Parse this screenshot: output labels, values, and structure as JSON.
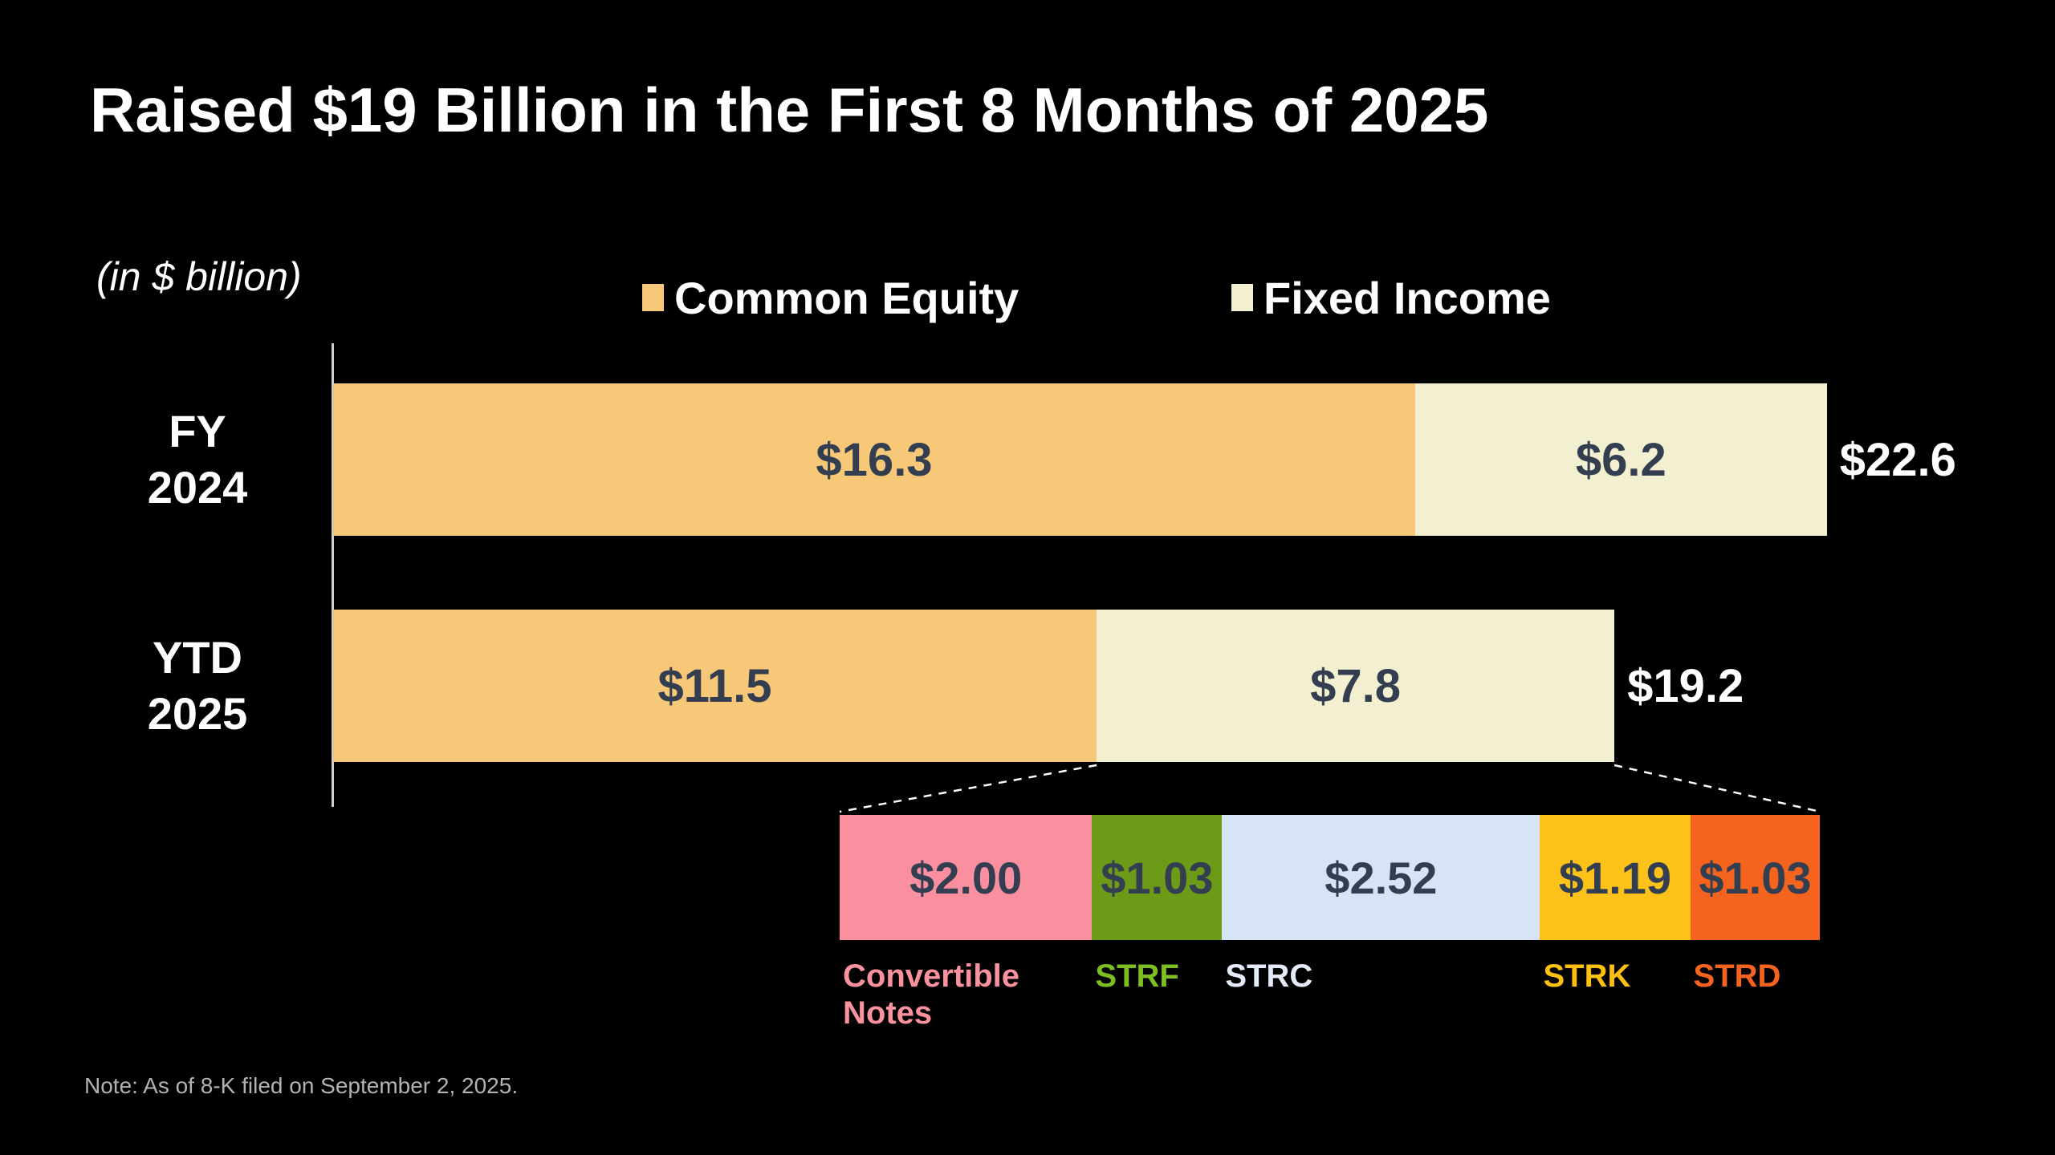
{
  "slide": {
    "title": "Raised $19 Billion in the First 8 Months of 2025",
    "units_label": "(in $ billion)",
    "note": "Note: As of 8-K filed on September 2, 2025."
  },
  "colors": {
    "background": "#000000",
    "common_equity": "#F6C878",
    "fixed_income": "#F2F0D0",
    "bar_value_text": "#333F50",
    "total_text": "#FFFFFF",
    "axis_line": "#CFCFCF",
    "connector": "#FFFFFF",
    "note_text": "#B2B2B2"
  },
  "chart_data": {
    "type": "bar",
    "orientation": "horizontal",
    "stacked": true,
    "unit": "$ billion",
    "title": "Raised $19 Billion in the First 8 Months of 2025",
    "categories": [
      "FY 2024",
      "YTD 2025"
    ],
    "categories_display": [
      "FY\n2024",
      "YTD\n2025"
    ],
    "series": [
      {
        "name": "Common Equity",
        "color": "#F6C878",
        "values": [
          16.3,
          11.5
        ],
        "displays": [
          "$16.3",
          "$11.5"
        ]
      },
      {
        "name": "Fixed Income",
        "color": "#F2F0D0",
        "values": [
          6.2,
          7.8
        ],
        "displays": [
          "$6.2",
          "$7.8"
        ]
      }
    ],
    "totals": [
      22.6,
      19.2
    ],
    "totals_display": [
      "$22.6",
      "$19.2"
    ],
    "legend_position": "top",
    "grid": false,
    "breakdown": {
      "segments": [
        {
          "label": "Convertible Notes",
          "label_display": "Convertible\nNotes",
          "value": 2.0,
          "display": "$2.00",
          "color": "#FA8FA0",
          "label_color": "#F9919E"
        },
        {
          "label": "STRF",
          "label_display": "STRF",
          "value": 1.03,
          "display": "$1.03",
          "color": "#6D9B17",
          "label_color": "#7DBE23"
        },
        {
          "label": "STRC",
          "label_display": "STRC",
          "value": 2.52,
          "display": "$2.52",
          "color": "#D7E4F6",
          "label_color": "#E3EBF8"
        },
        {
          "label": "STRK",
          "label_display": "STRK",
          "value": 1.19,
          "display": "$1.19",
          "color": "#FCC21A",
          "label_color": "#FDC00F"
        },
        {
          "label": "STRD",
          "label_display": "STRD",
          "value": 1.03,
          "display": "$1.03",
          "color": "#F5641E",
          "label_color": "#F4641E"
        }
      ]
    }
  }
}
